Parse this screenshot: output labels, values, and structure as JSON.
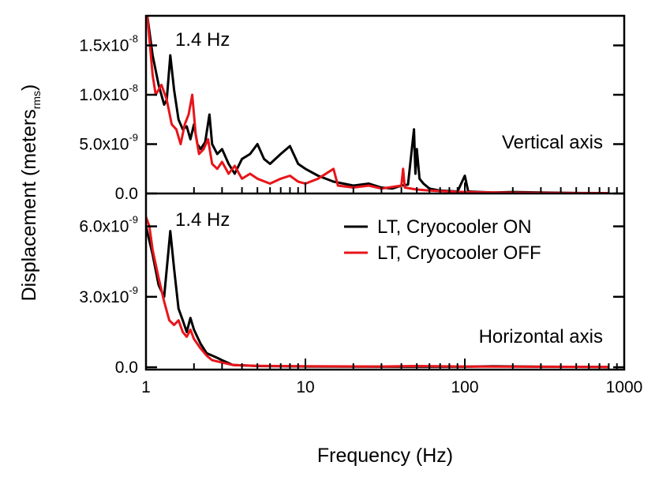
{
  "chart_data": {
    "type": "line",
    "xlabel": "Frequency (Hz)",
    "ylabel": "Displacement (meters",
    "ylabel_sub": "rms",
    "ylabel_close": ")",
    "xscale": "log",
    "xlim": [
      1,
      1000
    ],
    "x_ticks": [
      {
        "value": 1,
        "label": "1"
      },
      {
        "value": 10,
        "label": "10"
      },
      {
        "value": 100,
        "label": "100"
      },
      {
        "value": 1000,
        "label": "1000"
      }
    ],
    "legend": [
      {
        "label": "LT, Cryocooler ON",
        "color": "#000000"
      },
      {
        "label": "LT, Cryocooler OFF",
        "color": "#e8141a"
      }
    ],
    "panels": [
      {
        "id": "vertical",
        "annotation": "Vertical axis",
        "peak_label": "1.4 Hz",
        "ylim": [
          -0.0,
          1.8e-08
        ],
        "y_ticks": [
          {
            "value": 0,
            "mantissa": "0.0",
            "exp": ""
          },
          {
            "value": 5e-09,
            "mantissa": "5.0x10",
            "exp": "-9"
          },
          {
            "value": 1e-08,
            "mantissa": "1.0x10",
            "exp": "-8"
          },
          {
            "value": 1.5e-08,
            "mantissa": "1.5x10",
            "exp": "-8"
          }
        ],
        "series": [
          {
            "name": "LT, Cryocooler ON",
            "color": "#000000",
            "points": [
              [
                1.02,
                1.8e-08
              ],
              [
                1.1,
                1.4e-08
              ],
              [
                1.2,
                1.1e-08
              ],
              [
                1.3,
                9e-09
              ],
              [
                1.35,
                9.5e-09
              ],
              [
                1.42,
                1.4e-08
              ],
              [
                1.5,
                1.05e-08
              ],
              [
                1.6,
                7.5e-09
              ],
              [
                1.7,
                6.5e-09
              ],
              [
                1.8,
                6.8e-09
              ],
              [
                1.9,
                5.5e-09
              ],
              [
                2.0,
                7e-09
              ],
              [
                2.1,
                5e-09
              ],
              [
                2.2,
                4.5e-09
              ],
              [
                2.35,
                5.2e-09
              ],
              [
                2.5,
                8e-09
              ],
              [
                2.6,
                5e-09
              ],
              [
                2.8,
                4e-09
              ],
              [
                3.0,
                4.5e-09
              ],
              [
                3.3,
                3e-09
              ],
              [
                3.6,
                2e-09
              ],
              [
                4.0,
                3.5e-09
              ],
              [
                4.5,
                4e-09
              ],
              [
                5.0,
                5e-09
              ],
              [
                5.5,
                3.5e-09
              ],
              [
                6.0,
                3e-09
              ],
              [
                7.0,
                4e-09
              ],
              [
                8.0,
                4.8e-09
              ],
              [
                9.0,
                3e-09
              ],
              [
                10.0,
                2.5e-09
              ],
              [
                12.0,
                1.8e-09
              ],
              [
                15.0,
                1.2e-09
              ],
              [
                20.0,
                8e-10
              ],
              [
                25.0,
                1e-09
              ],
              [
                30.0,
                6e-10
              ],
              [
                35.0,
                5e-10
              ],
              [
                40.0,
                8e-10
              ],
              [
                44.0,
                9e-10
              ],
              [
                48.0,
                6.5e-09
              ],
              [
                49.0,
                2e-09
              ],
              [
                50.0,
                4.5e-09
              ],
              [
                52.0,
                1.5e-09
              ],
              [
                55.0,
                1e-09
              ],
              [
                60.0,
                5e-10
              ],
              [
                70.0,
                3e-10
              ],
              [
                90.0,
                2e-10
              ],
              [
                100.0,
                1.8e-09
              ],
              [
                105.0,
                2e-10
              ],
              [
                150.0,
                1e-10
              ],
              [
                200.0,
                1.5e-10
              ],
              [
                300.0,
                1e-10
              ],
              [
                500.0,
                5e-11
              ],
              [
                800.0,
                3e-11
              ]
            ]
          },
          {
            "name": "LT, Cryocooler OFF",
            "color": "#e8141a",
            "points": [
              [
                1.02,
                1.8e-08
              ],
              [
                1.1,
                1.2e-08
              ],
              [
                1.15,
                1e-08
              ],
              [
                1.25,
                1.1e-08
              ],
              [
                1.35,
                9.5e-09
              ],
              [
                1.45,
                7e-09
              ],
              [
                1.55,
                6.5e-09
              ],
              [
                1.65,
                5e-09
              ],
              [
                1.75,
                7e-09
              ],
              [
                1.85,
                8e-09
              ],
              [
                1.95,
                1e-08
              ],
              [
                2.05,
                6e-09
              ],
              [
                2.15,
                4e-09
              ],
              [
                2.3,
                4.5e-09
              ],
              [
                2.45,
                5.5e-09
              ],
              [
                2.6,
                3e-09
              ],
              [
                2.8,
                2.5e-09
              ],
              [
                3.0,
                3.2e-09
              ],
              [
                3.3,
                2e-09
              ],
              [
                3.6,
                2.8e-09
              ],
              [
                4.0,
                1.5e-09
              ],
              [
                4.5,
                2e-09
              ],
              [
                5.0,
                1.5e-09
              ],
              [
                6.0,
                1e-09
              ],
              [
                7.0,
                1.5e-09
              ],
              [
                8.0,
                1.8e-09
              ],
              [
                9.0,
                1.2e-09
              ],
              [
                10.0,
                1e-09
              ],
              [
                12.0,
                1.5e-09
              ],
              [
                15.0,
                2.5e-09
              ],
              [
                16.0,
                8e-10
              ],
              [
                20.0,
                6e-10
              ],
              [
                25.0,
                8e-10
              ],
              [
                30.0,
                5e-10
              ],
              [
                40.0,
                8e-10
              ],
              [
                41.0,
                2.5e-09
              ],
              [
                42.0,
                6e-10
              ],
              [
                50.0,
                4e-10
              ],
              [
                60.0,
                3e-10
              ],
              [
                80.0,
                2e-10
              ],
              [
                100.0,
                1.5e-10
              ],
              [
                150.0,
                1e-10
              ],
              [
                200.0,
                8e-11
              ],
              [
                400.0,
                5e-11
              ],
              [
                800.0,
                3e-11
              ]
            ]
          }
        ]
      },
      {
        "id": "horizontal",
        "annotation": "Horizontal axis",
        "peak_label": "1.4 Hz",
        "ylim": [
          -1e-10,
          7.4e-09
        ],
        "y_ticks": [
          {
            "value": 0,
            "mantissa": "0.0",
            "exp": ""
          },
          {
            "value": 3e-09,
            "mantissa": "3.0x10",
            "exp": "-9"
          },
          {
            "value": 6e-09,
            "mantissa": "6.0x10",
            "exp": "-9"
          }
        ],
        "series": [
          {
            "name": "LT, Cryocooler ON",
            "color": "#000000",
            "points": [
              [
                1.0,
                6e-09
              ],
              [
                1.1,
                4.8e-09
              ],
              [
                1.2,
                3.5e-09
              ],
              [
                1.3,
                3e-09
              ],
              [
                1.42,
                5.8e-09
              ],
              [
                1.5,
                4.2e-09
              ],
              [
                1.6,
                2.5e-09
              ],
              [
                1.7,
                2e-09
              ],
              [
                1.8,
                1.5e-09
              ],
              [
                1.9,
                2.1e-09
              ],
              [
                2.0,
                1.6e-09
              ],
              [
                2.2,
                1e-09
              ],
              [
                2.4,
                6e-10
              ],
              [
                2.6,
                5e-10
              ],
              [
                2.8,
                4e-10
              ],
              [
                3.0,
                3e-10
              ],
              [
                3.5,
                1e-10
              ],
              [
                4.0,
                8e-11
              ],
              [
                5.0,
                5e-11
              ],
              [
                10.0,
                3e-11
              ],
              [
                30.0,
                2e-11
              ],
              [
                100.0,
                2e-11
              ],
              [
                150.0,
                4e-11
              ],
              [
                300.0,
                2e-11
              ],
              [
                800.0,
                1e-11
              ]
            ]
          },
          {
            "name": "LT, Cryocooler OFF",
            "color": "#e8141a",
            "points": [
              [
                1.0,
                6.4e-09
              ],
              [
                1.05,
                6e-09
              ],
              [
                1.1,
                5e-09
              ],
              [
                1.2,
                3.8e-09
              ],
              [
                1.3,
                2.8e-09
              ],
              [
                1.4,
                2e-09
              ],
              [
                1.5,
                1.8e-09
              ],
              [
                1.6,
                2e-09
              ],
              [
                1.7,
                1.5e-09
              ],
              [
                1.8,
                1.3e-09
              ],
              [
                1.9,
                1.6e-09
              ],
              [
                2.0,
                1.2e-09
              ],
              [
                2.2,
                8e-10
              ],
              [
                2.4,
                5e-10
              ],
              [
                2.6,
                3e-10
              ],
              [
                3.0,
                2e-10
              ],
              [
                3.5,
                1e-10
              ],
              [
                4.0,
                8e-11
              ],
              [
                5.0,
                6e-11
              ],
              [
                10.0,
                4e-11
              ],
              [
                30.0,
                3e-11
              ],
              [
                50.0,
                5e-11
              ],
              [
                100.0,
                3e-11
              ],
              [
                300.0,
                2e-11
              ],
              [
                800.0,
                1e-11
              ]
            ]
          }
        ]
      }
    ]
  }
}
